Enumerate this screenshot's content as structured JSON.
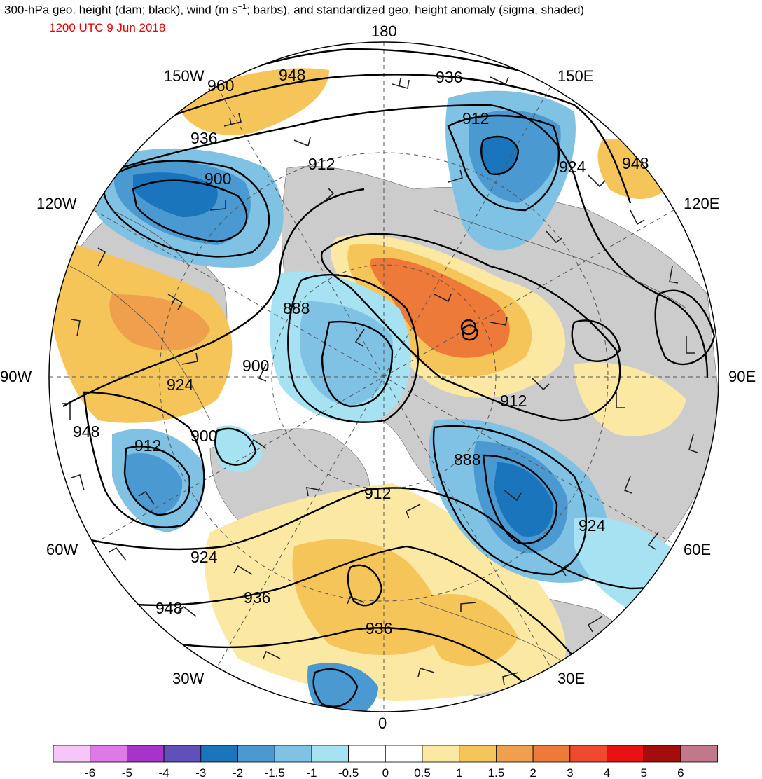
{
  "header": {
    "title_main": "300-hPa geo. height (dam; black), wind (m s",
    "title_sup": "−1",
    "title_rest": "; barbs), and standardized geo. height anomaly (sigma, shaded)",
    "valid_time": "1200 UTC 9 Jun 2018"
  },
  "map": {
    "projection": "north-polar-stereographic",
    "longitude_labels": {
      "top": "180",
      "bottom": "0",
      "left": "90W",
      "right": "90E",
      "upper_left_a": "150W",
      "upper_left_b": "120W",
      "upper_right_a": "150E",
      "upper_right_b": "120E",
      "lower_left_a": "60W",
      "lower_left_b": "30W",
      "lower_right_a": "60E",
      "lower_right_b": "30E"
    },
    "contour_labels": [
      "960",
      "948",
      "936",
      "912",
      "924",
      "948",
      "936",
      "912",
      "900",
      "888",
      "900",
      "924",
      "948",
      "912",
      "900",
      "912",
      "888",
      "924",
      "924",
      "948",
      "936",
      "936"
    ]
  },
  "colorbar": {
    "labels": [
      "-6",
      "-5",
      "-4",
      "-3",
      "-2",
      "-1.5",
      "-1",
      "-0.5",
      "0",
      "0.5",
      "1",
      "1.5",
      "2",
      "3",
      "4",
      "5",
      "6"
    ],
    "colors": [
      "#f6c6f8",
      "#dd7ae8",
      "#a633cc",
      "#6050bc",
      "#1b75bc",
      "#4a9ad1",
      "#80c2e4",
      "#a6e2f2",
      "#ffffff",
      "#ffffff",
      "#fbe8a2",
      "#f5c55a",
      "#f0a04d",
      "#ee7a3a",
      "#f04a2e",
      "#e81212",
      "#a50d0d",
      "#c2788a"
    ]
  }
}
